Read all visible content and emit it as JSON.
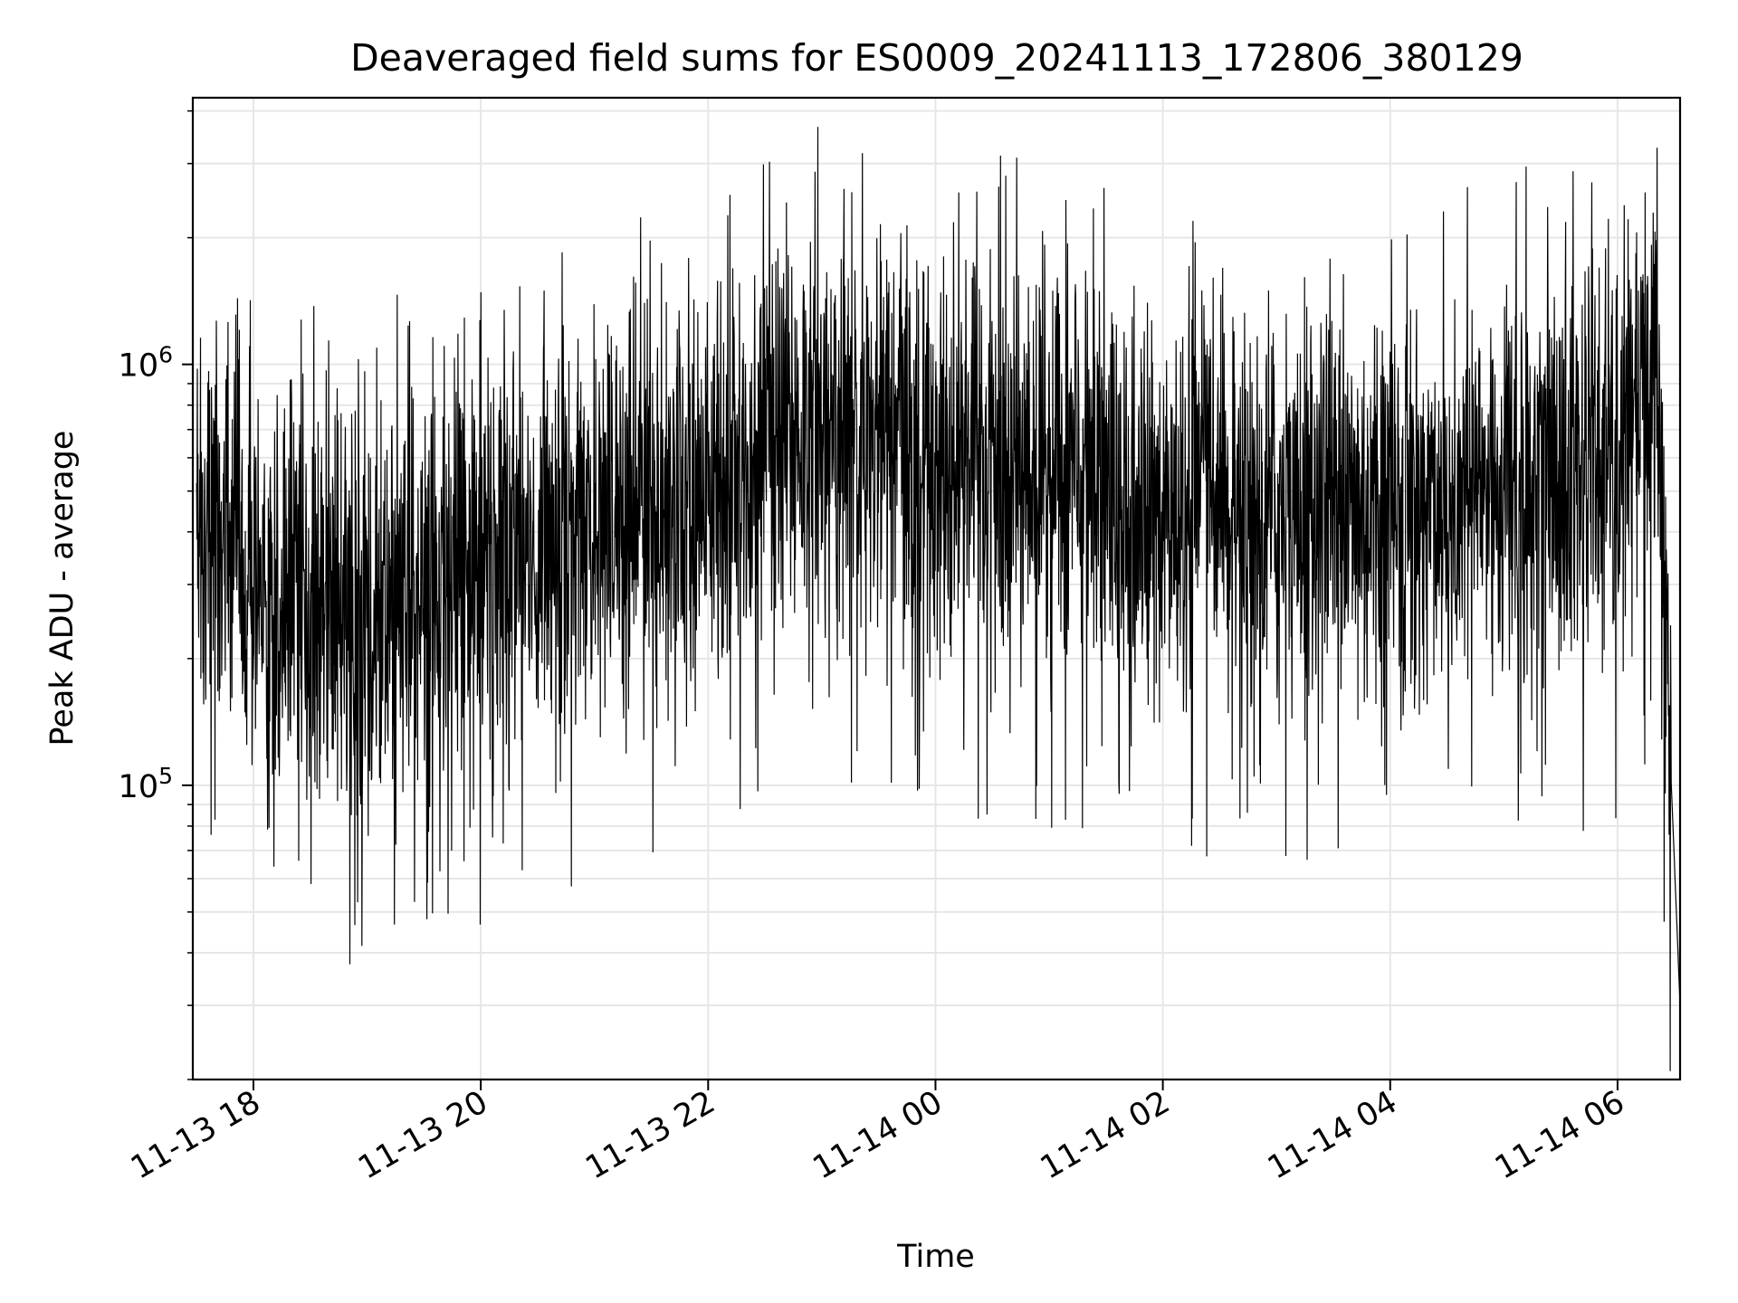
{
  "chart_data": {
    "type": "line",
    "title": "Deaveraged field sums for ES0009_20241113_172806_380129",
    "xlabel": "Time",
    "ylabel": "Peak ADU - average",
    "y_scale": "log",
    "ylim": [
      20000,
      4300000
    ],
    "xlim": [
      "2024-11-13T17:28:00",
      "2024-11-14T06:33:00"
    ],
    "grid": true,
    "legend": "none",
    "x_ticks": [
      {
        "label": "11-13 18",
        "value": "2024-11-13T18:00:00"
      },
      {
        "label": "11-13 20",
        "value": "2024-11-13T20:00:00"
      },
      {
        "label": "11-13 22",
        "value": "2024-11-13T22:00:00"
      },
      {
        "label": "11-14 00",
        "value": "2024-11-14T00:00:00"
      },
      {
        "label": "11-14 02",
        "value": "2024-11-14T02:00:00"
      },
      {
        "label": "11-14 04",
        "value": "2024-11-14T04:00:00"
      },
      {
        "label": "11-14 06",
        "value": "2024-11-14T06:00:00"
      }
    ],
    "y_ticks": [
      {
        "base": "10",
        "exp": "5",
        "value": 100000
      },
      {
        "base": "10",
        "exp": "6",
        "value": 1000000
      }
    ],
    "series": [
      {
        "color": "#000000",
        "x": [
          "2024-11-13T17:30:00",
          "2024-11-13T18:00:00",
          "2024-11-13T19:00:00",
          "2024-11-13T20:00:00",
          "2024-11-13T21:00:00",
          "2024-11-13T22:00:00",
          "2024-11-13T22:30:00",
          "2024-11-13T23:00:00",
          "2024-11-13T23:30:00",
          "2024-11-14T00:00:00",
          "2024-11-14T01:00:00",
          "2024-11-14T01:30:00",
          "2024-11-14T02:00:00",
          "2024-11-14T03:00:00",
          "2024-11-14T04:00:00",
          "2024-11-14T05:00:00",
          "2024-11-14T06:00:00",
          "2024-11-14T06:20:00",
          "2024-11-14T06:33:00"
        ],
        "y": [
          450000,
          300000,
          260000,
          330000,
          420000,
          480000,
          650000,
          700000,
          650000,
          580000,
          560000,
          480000,
          420000,
          430000,
          450000,
          520000,
          560000,
          900000,
          30000
        ]
      }
    ]
  }
}
